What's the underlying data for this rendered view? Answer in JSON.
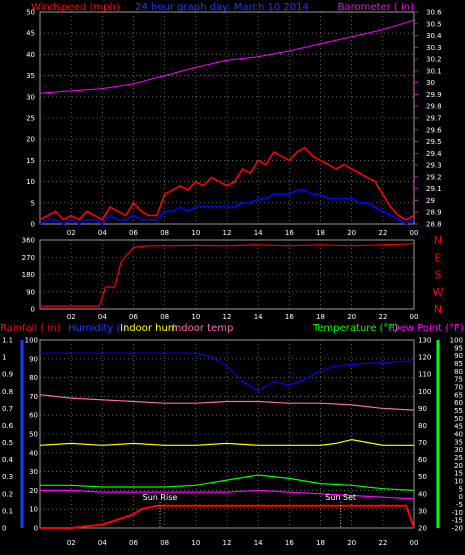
{
  "chart_data": [
    {
      "type": "line",
      "panel": "wind-barometer",
      "title": "24 hour graph day:  March 10 2014",
      "left_label": "Windspeed (mph)",
      "right_label": "Barometer ( in)",
      "x_ticks": [
        "02",
        "04",
        "06",
        "08",
        "10",
        "12",
        "14",
        "16",
        "18",
        "20",
        "22",
        "00"
      ],
      "y_left_ticks": [
        "0",
        "5",
        "10",
        "15",
        "20",
        "25",
        "30",
        "35",
        "40",
        "45",
        "50"
      ],
      "y_right_ticks": [
        "28.8",
        "28.9",
        "29",
        "29.1",
        "29.2",
        "29.3",
        "29.4",
        "29.5",
        "29.6",
        "29.7",
        "29.8",
        "29.9",
        "30",
        "30.1",
        "30.2",
        "30.3",
        "30.4",
        "30.5",
        "30.6"
      ],
      "ylim_left": [
        0,
        50
      ],
      "ylim_right": [
        28.8,
        30.6
      ],
      "grid": true,
      "series": [
        {
          "color": "#ff0000",
          "axis": "left",
          "x": [
            0,
            0.5,
            1,
            1.5,
            2,
            2.5,
            3,
            3.5,
            4,
            4.5,
            5,
            5.5,
            6,
            6.5,
            7,
            7.5,
            8,
            8.5,
            9,
            9.5,
            10,
            10.5,
            11,
            11.5,
            12,
            12.5,
            13,
            13.5,
            14,
            14.5,
            15,
            15.5,
            16,
            16.5,
            17,
            17.5,
            18,
            18.5,
            19,
            19.5,
            20,
            20.5,
            21,
            21.5,
            22,
            22.5,
            23,
            23.5,
            24
          ],
          "values": [
            1,
            2,
            3,
            1,
            2,
            1,
            3,
            2,
            1,
            4,
            3,
            2,
            5,
            3,
            2,
            2,
            7,
            8,
            9,
            8,
            10,
            9,
            11,
            10,
            9,
            10,
            13,
            12,
            15,
            14,
            17,
            16,
            15,
            17,
            18,
            16,
            15,
            14,
            13,
            14,
            13,
            12,
            11,
            10,
            7,
            4,
            2,
            1,
            2
          ]
        },
        {
          "color": "#0000ff",
          "axis": "left",
          "x": [
            0,
            0.5,
            1,
            1.5,
            2,
            2.5,
            3,
            3.5,
            4,
            4.5,
            5,
            5.5,
            6,
            6.5,
            7,
            7.5,
            8,
            8.5,
            9,
            9.5,
            10,
            10.5,
            11,
            11.5,
            12,
            12.5,
            13,
            13.5,
            14,
            14.5,
            15,
            15.5,
            16,
            16.5,
            17,
            17.5,
            18,
            18.5,
            19,
            19.5,
            20,
            20.5,
            21,
            21.5,
            22,
            22.5,
            23,
            23.5,
            24
          ],
          "values": [
            0,
            1,
            1,
            0,
            1,
            0,
            1,
            1,
            0,
            2,
            1,
            1,
            2,
            1,
            1,
            1,
            3,
            3,
            4,
            3,
            4,
            4,
            4,
            4,
            4,
            4,
            5,
            5,
            6,
            6,
            7,
            7,
            7,
            8,
            8,
            7,
            7,
            6,
            6,
            6,
            6,
            5,
            5,
            4,
            3,
            2,
            1,
            0,
            1
          ]
        },
        {
          "color": "#ff00ff",
          "axis": "right",
          "x": [
            0,
            2,
            4,
            6,
            8,
            10,
            12,
            14,
            16,
            18,
            20,
            22,
            24
          ],
          "values": [
            29.91,
            29.93,
            29.95,
            29.99,
            30.06,
            30.13,
            30.19,
            30.22,
            30.27,
            30.33,
            30.39,
            30.45,
            30.53
          ]
        }
      ]
    },
    {
      "type": "line",
      "panel": "wind-direction",
      "x_ticks": [
        "02",
        "04",
        "06",
        "08",
        "10",
        "12",
        "14",
        "16",
        "18",
        "20",
        "22",
        "00"
      ],
      "y_ticks": [
        "0",
        "90",
        "180",
        "270",
        "360"
      ],
      "compass_labels": [
        "N",
        "W",
        "S",
        "E",
        "N"
      ],
      "ylim": [
        0,
        360
      ],
      "grid": true,
      "series": [
        {
          "color": "#ff0000",
          "x": [
            0,
            1,
            2,
            3,
            3.8,
            4.2,
            4.8,
            5.2,
            6,
            7,
            8,
            10,
            12,
            14,
            16,
            18,
            20,
            22,
            24
          ],
          "values": [
            15,
            15,
            15,
            15,
            15,
            115,
            115,
            245,
            322,
            330,
            330,
            332,
            330,
            335,
            330,
            335,
            330,
            335,
            340
          ]
        }
      ]
    },
    {
      "type": "line",
      "panel": "rain-humidity-temperature",
      "legend": [
        "Rainfall ( in)",
        "Humidity (l)",
        "Indoor hum",
        "Indoor temp",
        "Temperature (°F)",
        "Dew Point (°F)"
      ],
      "annotations": [
        "Sun Rise",
        "Sun Set"
      ],
      "x_ticks": [
        "02",
        "04",
        "06",
        "08",
        "10",
        "12",
        "14",
        "16",
        "18",
        "20",
        "22",
        "00"
      ],
      "y_left_outer_ticks": [
        "0",
        "0.1",
        "0.2",
        "0.3",
        "0.4",
        "0.5",
        "0.6",
        "0.7",
        "0.8",
        "0.9",
        "1",
        "1.1"
      ],
      "y_left_inner_ticks": [
        "0",
        "10",
        "20",
        "30",
        "40",
        "50",
        "60",
        "70",
        "80",
        "90",
        "100"
      ],
      "y_right_inner_ticks": [
        "20",
        "30",
        "40",
        "50",
        "60",
        "70",
        "80",
        "90",
        "100",
        "110",
        "120",
        "130"
      ],
      "y_right_outer_ticks": [
        "-20",
        "-15",
        "-10",
        "-5",
        "0",
        "5",
        "10",
        "15",
        "20",
        "25",
        "30",
        "35",
        "40",
        "45",
        "50",
        "55",
        "60",
        "65",
        "70",
        "75",
        "80",
        "85",
        "90",
        "95",
        "100"
      ],
      "grid": true,
      "series": [
        {
          "color": "#ff0000",
          "axis": "rainfall-in",
          "x": [
            0,
            2,
            3,
            4,
            5,
            6,
            6.5,
            7.5,
            9,
            12,
            15,
            18,
            21,
            23.5,
            24
          ],
          "values": [
            0,
            0,
            0.01,
            0.02,
            0.05,
            0.08,
            0.11,
            0.13,
            0.13,
            0.13,
            0.13,
            0.13,
            0.13,
            0.13,
            0
          ]
        },
        {
          "color": "#0000ff",
          "axis": "humidity-pct",
          "x": [
            0,
            2,
            4,
            6,
            8,
            10,
            11,
            12,
            13,
            14,
            15,
            16,
            17,
            18,
            19,
            20,
            22,
            24
          ],
          "values": [
            93,
            93,
            93,
            93,
            93,
            93,
            91,
            86,
            78,
            73,
            78,
            76,
            79,
            84,
            86,
            87,
            88,
            89
          ]
        },
        {
          "color": "#ffff00",
          "axis": "humidity-pct",
          "x": [
            0,
            2,
            4,
            6,
            8,
            10,
            12,
            14,
            16,
            18,
            19,
            20,
            22,
            24
          ],
          "values": [
            44,
            45,
            44,
            45,
            44,
            44,
            45,
            44,
            44,
            44,
            45,
            47,
            44,
            44
          ]
        },
        {
          "color": "#ff69b4",
          "axis": "temperature-f",
          "x": [
            0,
            2,
            4,
            6,
            8,
            10,
            12,
            14,
            16,
            18,
            20,
            22,
            24
          ],
          "values": [
            98,
            96,
            95,
            94,
            93,
            93,
            94,
            94,
            93,
            93,
            92,
            90,
            89
          ]
        },
        {
          "color": "#00ff00",
          "axis": "temperature-f",
          "x": [
            0,
            2,
            4,
            6,
            8,
            10,
            12,
            14,
            16,
            18,
            20,
            22,
            24
          ],
          "values": [
            45,
            45,
            44,
            44,
            44,
            45,
            48,
            51,
            49,
            46,
            45,
            43,
            42
          ]
        },
        {
          "color": "#ff00ff",
          "axis": "temperature-f",
          "x": [
            0,
            2,
            4,
            6,
            8,
            10,
            12,
            14,
            16,
            18,
            20,
            22,
            24
          ],
          "values": [
            42,
            42,
            41,
            41,
            41,
            41,
            41,
            42,
            41,
            40,
            39,
            38,
            37
          ]
        }
      ],
      "markers": [
        {
          "label": "Sun Rise",
          "x": 7.7
        },
        {
          "label": "Sun Set",
          "x": 19.3
        }
      ]
    }
  ]
}
